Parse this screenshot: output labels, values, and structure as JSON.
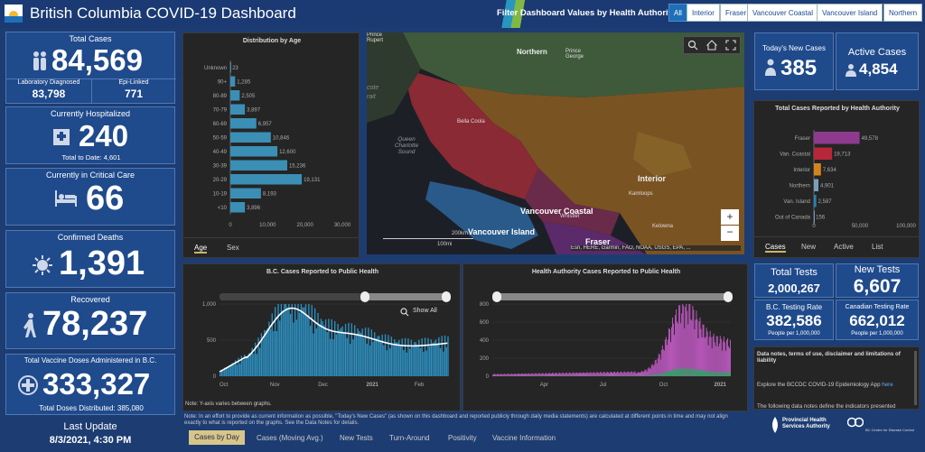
{
  "header": {
    "title": "British Columbia COVID-19 Dashboard",
    "filter_label": "Filter Dashboard Values by Health Authority:",
    "filters": [
      "All",
      "Interior",
      "Fraser",
      "Vancouver Coastal",
      "Vancouver Island",
      "Northern"
    ]
  },
  "left": {
    "total_cases": {
      "label": "Total Cases",
      "value": "84,569",
      "lab_label": "Laboratory Diagnosed",
      "lab_value": "83,798",
      "epi_label": "Epi-Linked",
      "epi_value": "771"
    },
    "hospitalized": {
      "label": "Currently Hospitalized",
      "value": "240",
      "sub": "Total to Date: 4,601"
    },
    "critical": {
      "label": "Currently in Critical Care",
      "value": "66"
    },
    "deaths": {
      "label": "Confirmed Deaths",
      "value": "1,391"
    },
    "recovered": {
      "label": "Recovered",
      "value": "78,237"
    },
    "vaccine": {
      "label": "Total Vaccine Doses Administered in B.C.",
      "value": "333,327",
      "sub": "Total Doses Distributed: 385,080"
    },
    "last_update": {
      "label": "Last Update",
      "value": "8/3/2021, 4:30 PM"
    }
  },
  "age_chart": {
    "title": "Distribution by Age",
    "tabs": [
      "Age",
      "Sex"
    ]
  },
  "map": {
    "labels": {
      "prince_rupert": "Prince Rupert",
      "northern": "Northern",
      "prince_george": "Prince George",
      "bella_coola": "Bella Coola",
      "queen_charlotte": "Queen Charlotte Sound",
      "interior": "Interior",
      "kamloops": "Kamloops",
      "vancouver_coastal": "Vancouver Coastal",
      "whistler": "Whistler",
      "vancouver_island": "Vancouver Island",
      "fraser": "Fraser",
      "kelowna": "Kelowna",
      "cote": "cote",
      "rait": "rait",
      "scale_200": "200km",
      "scale_100": "100mi",
      "attribution": "Esri, HERE, Garmin, FAO, NOAA, USGS, EPA, ..."
    },
    "zoom_in": "+",
    "zoom_out": "−"
  },
  "right": {
    "new_cases": {
      "label": "Today's New Cases",
      "value": "385"
    },
    "active": {
      "label": "Active Cases",
      "value": "4,854"
    },
    "ha_chart_title": "Total Cases Reported by Health Authority",
    "ha_tabs": [
      "Cases",
      "New",
      "Active",
      "List"
    ],
    "total_tests": {
      "label": "Total Tests",
      "value": "2,000,267"
    },
    "new_tests": {
      "label": "New Tests",
      "value": "6,607"
    },
    "bc_rate": {
      "label": "B.C. Testing Rate",
      "value": "382,586",
      "sub": "People per 1,000,000"
    },
    "ca_rate": {
      "label": "Canadian Testing Rate",
      "value": "662,012",
      "sub": "People per 1,000,000"
    },
    "notes_title": "Data notes, terms of use, disclaimer and limitations of liability",
    "notes_line1": "Explore the BCCDC COVID-19 Epidemiology App ",
    "notes_link": "here",
    "notes_line2": "The following data notes define the indicators presented",
    "logo_pha": "Provincial Health Services Authority",
    "logo_bccdc": "BC Centre for Disease Control"
  },
  "bottom": {
    "bc_title": "B.C. Cases Reported to Public Health",
    "show_all": "Show All",
    "ha_title": "Health Authority Cases Reported to Public Health",
    "axis_note": "Note: Y-axis varies between graphs.",
    "note": "Note: In an effort to provide as current information as possible, \"Today's New Cases\" (as shown on this dashboard and reported publicly through daily media statements) are calculated at different points in time and may not align exactly to what is reported on the graphs. See the Data Notes for details.",
    "tabs": [
      "Cases by Day",
      "Cases (Moving Avg.)",
      "New Tests",
      "Turn-Around",
      "Positivity",
      "Vaccine Information"
    ]
  },
  "chart_data": [
    {
      "type": "bar",
      "title": "Distribution by Age",
      "categories": [
        "Unknown",
        "90+",
        "80-89",
        "70-79",
        "60-69",
        "50-59",
        "40-49",
        "30-39",
        "20-29",
        "10-19",
        "<10"
      ],
      "values": [
        23,
        1285,
        2505,
        3897,
        6957,
        10846,
        12600,
        15236,
        19131,
        8193,
        3896
      ],
      "xlim": [
        0,
        30000
      ],
      "xticks": [
        "0",
        "10,000",
        "20,000",
        "30,000"
      ]
    },
    {
      "type": "bar",
      "title": "Total Cases Reported by Health Authority",
      "categories": [
        "Fraser",
        "Van. Coastal",
        "Interior",
        "Northern",
        "Van. Island",
        "Out of Canada"
      ],
      "values": [
        49578,
        19713,
        7634,
        4901,
        2587,
        156
      ],
      "colors": [
        "#8e3a8f",
        "#b8263a",
        "#d4841c",
        "#7aa0b8",
        "#2b7fb8",
        "#6a9ac8"
      ],
      "xlim": [
        0,
        100000
      ],
      "xticks": [
        "0",
        "50,000",
        "100,000"
      ]
    },
    {
      "type": "bar",
      "title": "B.C. Cases Reported to Public Health",
      "ylim": [
        0,
        1000
      ],
      "yticks": [
        "0",
        "500",
        "1,000"
      ],
      "xticks": [
        "Oct",
        "Nov",
        "Dec",
        "2021",
        "Feb"
      ]
    },
    {
      "type": "area",
      "title": "Health Authority Cases Reported to Public Health",
      "ylim": [
        0,
        800
      ],
      "yticks": [
        "0",
        "200",
        "400",
        "600",
        "800"
      ],
      "xticks": [
        "Apr",
        "Jul",
        "Oct",
        "2021"
      ]
    }
  ]
}
